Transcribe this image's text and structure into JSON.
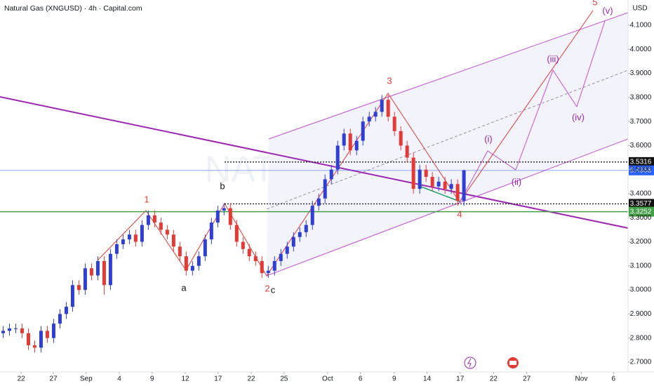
{
  "chart_data": {
    "type": "candlestick",
    "title": "Natural Gas (XNGUSD) · 4h · Capital.com",
    "currency": "USD",
    "watermark": "NATURALGAS",
    "up_color": "#2f3fd6",
    "down_color": "#e53935",
    "xlim": [
      0,
      199
    ],
    "xticks": [
      {
        "value": 6.7,
        "label": "22"
      },
      {
        "value": 16.9,
        "label": "27"
      },
      {
        "value": 27.3,
        "label": "Sep"
      },
      {
        "value": 37.8,
        "label": "4"
      },
      {
        "value": 48.2,
        "label": "9"
      },
      {
        "value": 58.7,
        "label": "12"
      },
      {
        "value": 69.1,
        "label": "17"
      },
      {
        "value": 79.6,
        "label": "22"
      },
      {
        "value": 90,
        "label": "25"
      },
      {
        "value": 103.8,
        "label": "Oct"
      },
      {
        "value": 114.2,
        "label": "6"
      },
      {
        "value": 124.9,
        "label": "9"
      },
      {
        "value": 135.3,
        "label": "14"
      },
      {
        "value": 145.8,
        "label": "17"
      },
      {
        "value": 156.4,
        "label": "22"
      },
      {
        "value": 166.9,
        "label": "27"
      },
      {
        "value": 184.2,
        "label": "Nov"
      },
      {
        "value": 194.4,
        "label": "6"
      }
    ],
    "ylim": [
      2.659,
      4.205
    ],
    "yticks": [
      {
        "value": 2.7,
        "label": "2.7000"
      },
      {
        "value": 2.8,
        "label": "2.8000"
      },
      {
        "value": 2.9,
        "label": "2.9000"
      },
      {
        "value": 3.0,
        "label": "3.0000"
      },
      {
        "value": 3.1,
        "label": "3.1000"
      },
      {
        "value": 3.2,
        "label": "3.2000"
      },
      {
        "value": 3.3,
        "label": "3.3000"
      },
      {
        "value": 3.4,
        "label": "3.4000"
      },
      {
        "value": 3.5,
        "label": "3.5000"
      },
      {
        "value": 3.6,
        "label": "3.6000"
      },
      {
        "value": 3.7,
        "label": "3.7000"
      },
      {
        "value": 3.8,
        "label": "3.8000"
      },
      {
        "value": 3.9,
        "label": "3.9000"
      },
      {
        "value": 4.0,
        "label": "4.0000"
      },
      {
        "value": 4.1,
        "label": "4.1000"
      }
    ],
    "x": [
      1,
      3,
      5,
      7,
      9,
      11,
      13,
      15,
      17,
      19,
      21,
      23,
      25,
      27,
      29,
      31,
      33,
      35,
      37,
      39,
      41,
      43,
      45,
      47,
      49,
      51,
      53,
      55,
      57,
      59,
      61,
      63,
      65,
      67,
      69,
      71,
      73,
      75,
      77,
      79,
      81,
      83,
      85,
      87,
      89,
      91,
      93,
      95,
      97,
      99,
      101,
      103,
      105,
      107,
      109,
      111,
      113,
      115,
      117,
      119,
      121,
      123,
      125,
      127,
      129,
      131,
      133,
      135,
      137,
      139,
      141,
      143,
      145,
      147
    ],
    "open": [
      2.82,
      2.83,
      2.84,
      2.84,
      2.82,
      2.77,
      2.76,
      2.83,
      2.8,
      2.86,
      2.9,
      2.93,
      3.02,
      3.0,
      3.09,
      3.06,
      3.12,
      3.02,
      3.15,
      3.19,
      3.21,
      3.23,
      3.2,
      3.27,
      3.31,
      3.28,
      3.25,
      3.23,
      3.18,
      3.14,
      3.08,
      3.1,
      3.14,
      3.21,
      3.28,
      3.33,
      3.34,
      3.27,
      3.2,
      3.17,
      3.14,
      3.12,
      3.07,
      3.08,
      3.12,
      3.15,
      3.18,
      3.22,
      3.24,
      3.27,
      3.35,
      3.38,
      3.46,
      3.5,
      3.6,
      3.65,
      3.58,
      3.62,
      3.7,
      3.72,
      3.74,
      3.79,
      3.72,
      3.66,
      3.6,
      3.55,
      3.42,
      3.5,
      3.47,
      3.43,
      3.45,
      3.42,
      3.44,
      3.37
    ],
    "high": [
      2.85,
      2.86,
      2.86,
      2.86,
      2.84,
      2.79,
      2.85,
      2.85,
      2.88,
      2.92,
      2.95,
      3.04,
      3.04,
      3.11,
      3.11,
      3.14,
      3.14,
      3.17,
      3.21,
      3.23,
      3.25,
      3.25,
      3.29,
      3.33,
      3.33,
      3.3,
      3.27,
      3.25,
      3.2,
      3.16,
      3.12,
      3.16,
      3.23,
      3.3,
      3.35,
      3.36,
      3.36,
      3.29,
      3.22,
      3.19,
      3.16,
      3.14,
      3.1,
      3.14,
      3.17,
      3.2,
      3.24,
      3.26,
      3.29,
      3.37,
      3.4,
      3.48,
      3.52,
      3.62,
      3.67,
      3.67,
      3.64,
      3.72,
      3.74,
      3.76,
      3.81,
      3.81,
      3.74,
      3.68,
      3.62,
      3.57,
      3.52,
      3.52,
      3.49,
      3.47,
      3.47,
      3.46,
      3.46,
      3.5
    ],
    "low": [
      2.8,
      2.81,
      2.82,
      2.8,
      2.75,
      2.74,
      2.74,
      2.78,
      2.78,
      2.84,
      2.88,
      2.91,
      2.98,
      2.98,
      3.04,
      3.04,
      2.98,
      3.0,
      3.13,
      3.17,
      3.19,
      3.18,
      3.18,
      3.25,
      3.26,
      3.23,
      3.21,
      3.16,
      3.12,
      3.06,
      3.06,
      3.08,
      3.12,
      3.19,
      3.26,
      3.31,
      3.25,
      3.18,
      3.15,
      3.12,
      3.1,
      3.05,
      3.05,
      3.06,
      3.1,
      3.13,
      3.16,
      3.2,
      3.22,
      3.25,
      3.33,
      3.36,
      3.44,
      3.48,
      3.58,
      3.56,
      3.56,
      3.6,
      3.68,
      3.7,
      3.72,
      3.7,
      3.64,
      3.58,
      3.53,
      3.4,
      3.4,
      3.45,
      3.41,
      3.41,
      3.4,
      3.4,
      3.35,
      3.35
    ],
    "close": [
      2.83,
      2.84,
      2.84,
      2.82,
      2.77,
      2.76,
      2.83,
      2.8,
      2.86,
      2.9,
      2.93,
      3.02,
      3.0,
      3.09,
      3.06,
      3.12,
      3.02,
      3.15,
      3.19,
      3.21,
      3.23,
      3.2,
      3.27,
      3.31,
      3.28,
      3.25,
      3.23,
      3.18,
      3.14,
      3.08,
      3.1,
      3.14,
      3.21,
      3.28,
      3.33,
      3.34,
      3.27,
      3.2,
      3.17,
      3.14,
      3.12,
      3.07,
      3.08,
      3.12,
      3.15,
      3.18,
      3.22,
      3.24,
      3.27,
      3.35,
      3.38,
      3.46,
      3.5,
      3.6,
      3.65,
      3.58,
      3.62,
      3.7,
      3.72,
      3.74,
      3.79,
      3.72,
      3.66,
      3.6,
      3.55,
      3.42,
      3.5,
      3.47,
      3.43,
      3.45,
      3.42,
      3.44,
      3.37,
      3.4968
    ],
    "price_lines": [
      {
        "value": 3.5316,
        "color": "#111111",
        "style": "dotted"
      },
      {
        "value": 3.4968,
        "color": "#2962ff",
        "style": "solid"
      },
      {
        "value": 3.3577,
        "color": "#111111",
        "style": "dotted"
      },
      {
        "value": 3.3252,
        "color": "#43a047",
        "style": "solid"
      }
    ],
    "annotations": [
      "1",
      "a",
      "b",
      "2",
      "c",
      "3",
      "4",
      "5",
      "(i)",
      "(ii)",
      "(iii)",
      "(iv)",
      "(v)"
    ]
  }
}
